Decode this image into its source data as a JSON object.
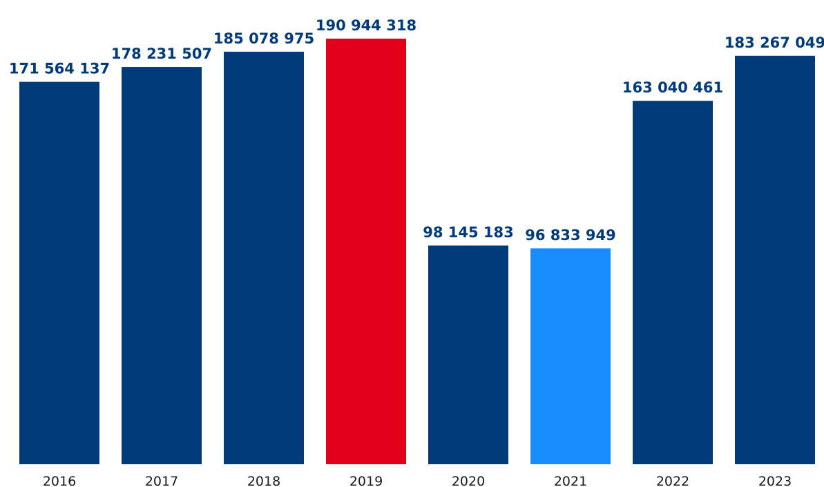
{
  "chart_data": {
    "type": "bar",
    "title": "",
    "xlabel": "",
    "ylabel": "",
    "categories": [
      "2016",
      "2017",
      "2018",
      "2019",
      "2020",
      "2021",
      "2022",
      "2023"
    ],
    "values": [
      171564137,
      178231507,
      185078975,
      190944318,
      98145183,
      96833949,
      163040461,
      183267049
    ],
    "value_labels": [
      "171 564 137",
      "178 231 507",
      "185 078 975",
      "190 944 318",
      "98 145 183",
      "96 833 949",
      "163 040 461",
      "183 267 049"
    ],
    "bar_colors": [
      "#003a78",
      "#003a78",
      "#003a78",
      "#e3001b",
      "#003a78",
      "#1a8cff",
      "#003a78",
      "#003a78"
    ],
    "ylim": [
      0,
      190944318
    ],
    "grid": false,
    "legend": false
  }
}
